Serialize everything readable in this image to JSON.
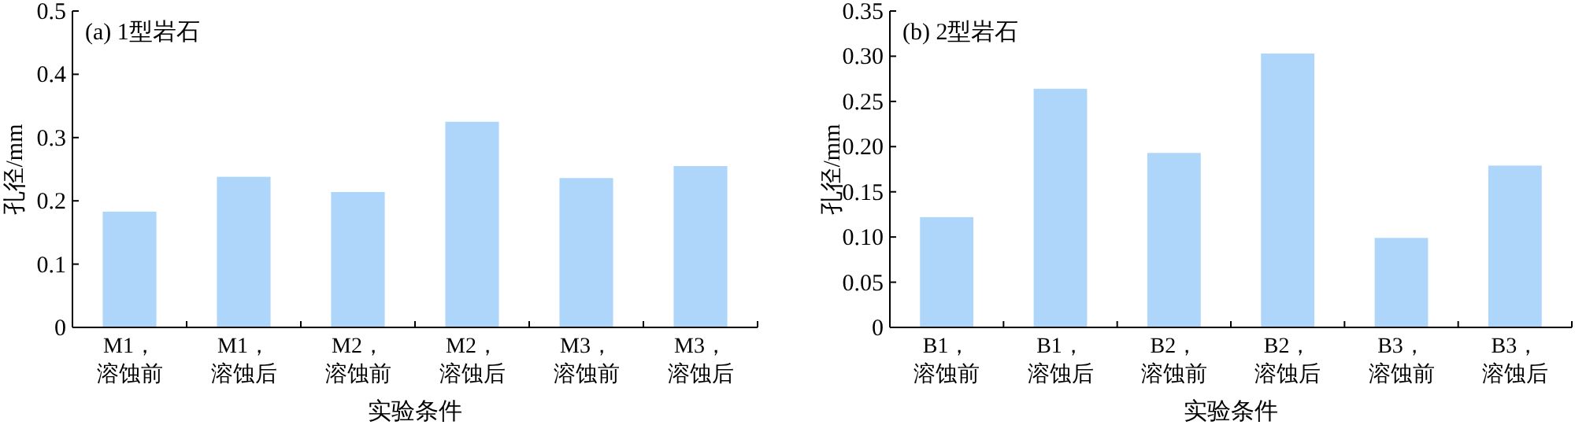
{
  "chart_data": [
    {
      "type": "bar",
      "title": "(a) 1型岩石",
      "xlabel": "实验条件",
      "ylabel": "孔径/mm",
      "categories": [
        "M1，溶蚀前",
        "M1，溶蚀后",
        "M2，溶蚀前",
        "M2，溶蚀后",
        "M3，溶蚀前",
        "M3，溶蚀后"
      ],
      "values": [
        0.183,
        0.238,
        0.214,
        0.325,
        0.236,
        0.255
      ],
      "color": "#aed6fb",
      "ylim": [
        0,
        0.5
      ],
      "yticks": [
        0,
        0.1,
        0.2,
        0.3,
        0.4,
        0.5
      ]
    },
    {
      "type": "bar",
      "title": "(b) 2型岩石",
      "xlabel": "实验条件",
      "ylabel": "孔径/mm",
      "categories": [
        "B1，溶蚀前",
        "B1，溶蚀后",
        "B2，溶蚀前",
        "B2，溶蚀后",
        "B3，溶蚀前",
        "B3，溶蚀后"
      ],
      "values": [
        0.122,
        0.264,
        0.193,
        0.303,
        0.099,
        0.179
      ],
      "color": "#aed6fb",
      "ylim": [
        0,
        0.35
      ],
      "yticks": [
        0,
        {
          "value": 0.05,
          "label": "0.05"
        },
        {
          "value": 0.1,
          "label": "0.10"
        },
        {
          "value": 0.15,
          "label": "0.15"
        },
        {
          "value": 0.2,
          "label": "0.20"
        },
        {
          "value": 0.25,
          "label": "0.25"
        },
        {
          "value": 0.3,
          "label": "0.30"
        },
        {
          "value": 0.35,
          "label": "0.35"
        }
      ]
    }
  ]
}
